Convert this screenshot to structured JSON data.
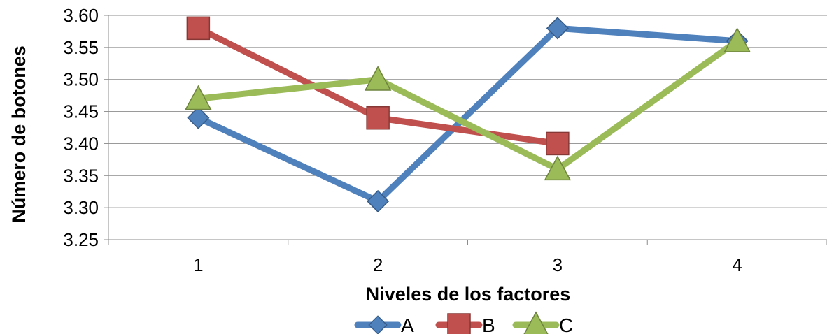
{
  "chart_data": {
    "type": "line",
    "title": "",
    "xlabel": "Niveles de los factores",
    "ylabel": "Número de botones",
    "categories": [
      "1",
      "2",
      "3",
      "4"
    ],
    "ylim": [
      3.25,
      3.6
    ],
    "yticks": [
      "3.25",
      "3.30",
      "3.35",
      "3.40",
      "3.45",
      "3.50",
      "3.55",
      "3.60"
    ],
    "grid": true,
    "legend_position": "bottom",
    "series": [
      {
        "name": "A",
        "color": "#4F81BD",
        "marker": "diamond",
        "values": [
          3.44,
          3.31,
          3.58,
          3.56
        ]
      },
      {
        "name": "B",
        "color": "#C0504D",
        "marker": "square",
        "values": [
          3.58,
          3.44,
          3.4,
          null
        ]
      },
      {
        "name": "C",
        "color": "#9BBB59",
        "marker": "triangle",
        "values": [
          3.47,
          3.5,
          3.36,
          3.56
        ]
      }
    ]
  }
}
